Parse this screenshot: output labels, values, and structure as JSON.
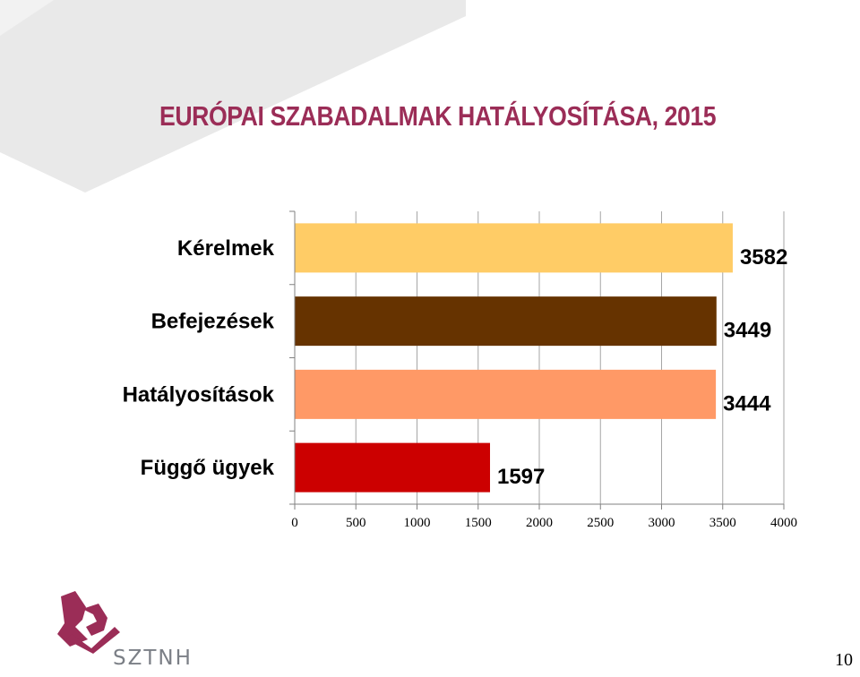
{
  "slide": {
    "title": "EURÓPAI SZABADALMAK HATÁLYOSÍTÁSA, 2015",
    "page_number": "10",
    "colors": {
      "title": "#9b2d57",
      "background_decor": "#e6e6e6"
    }
  },
  "logo": {
    "text": "SZTNH",
    "icon": "sztnh-logo-icon",
    "color": "#9b2d57"
  },
  "chart_data": {
    "type": "bar",
    "orientation": "horizontal",
    "title": "",
    "xlabel": "",
    "ylabel": "",
    "categories": [
      "Kérelmek",
      "Befejezések",
      "Hatályosítások",
      "Függő ügyek"
    ],
    "values": [
      3582,
      3449,
      3444,
      1597
    ],
    "bar_colors": [
      "#ffcc66",
      "#663300",
      "#ff9966",
      "#cc0000"
    ],
    "xlim": [
      0,
      4000
    ],
    "xticks": [
      0,
      500,
      1000,
      1500,
      2000,
      2500,
      3000,
      3500,
      4000
    ],
    "grid": true,
    "legend": "none"
  }
}
